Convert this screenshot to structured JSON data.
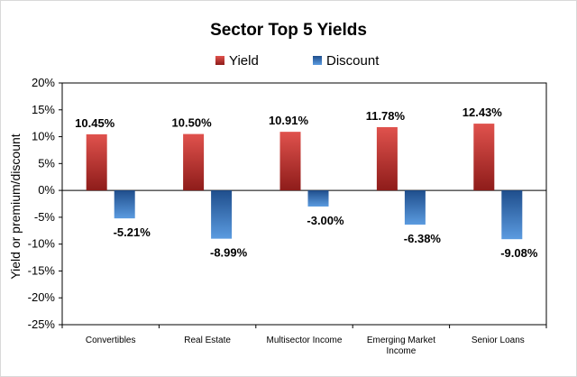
{
  "chart_data": {
    "type": "bar",
    "title": "Sector Top 5 Yields",
    "xlabel": "",
    "ylabel": "Yield or premium/discount",
    "ylim": [
      -25,
      20
    ],
    "ytick_step": 5,
    "yticks": [
      "20%",
      "15%",
      "10%",
      "5%",
      "0%",
      "-5%",
      "-10%",
      "-15%",
      "-20%",
      "-25%"
    ],
    "categories": [
      [
        "Convertibles"
      ],
      [
        "Real Estate"
      ],
      [
        "Multisector Income"
      ],
      [
        "Emerging Market",
        "Income"
      ],
      [
        "Senior Loans"
      ]
    ],
    "series": [
      {
        "name": "Yield",
        "values": [
          10.45,
          10.5,
          10.91,
          11.78,
          12.43
        ],
        "labels": [
          "10.45%",
          "10.50%",
          "10.91%",
          "11.78%",
          "12.43%"
        ],
        "color_top": "#e0524d",
        "color_bottom": "#8e1c1a"
      },
      {
        "name": "Discount",
        "values": [
          -5.21,
          -8.99,
          -3.0,
          -6.38,
          -9.08
        ],
        "labels": [
          "-5.21%",
          "-8.99%",
          "-3.00%",
          "-6.38%",
          "-9.08%"
        ],
        "color_top": "#1f4e8c",
        "color_bottom": "#5b9be0"
      }
    ],
    "grid": false,
    "legend": "top-center"
  }
}
